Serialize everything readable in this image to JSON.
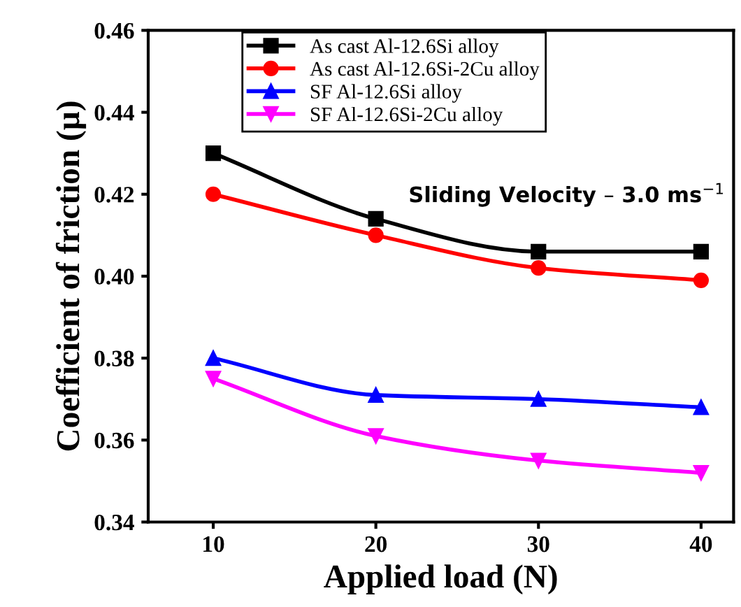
{
  "chart_data": {
    "type": "line",
    "xlabel": "Applied load (N)",
    "ylabel": "Coefficient of friction (µ)",
    "x": [
      10,
      20,
      30,
      40
    ],
    "xlim": [
      6,
      42
    ],
    "xticks": [
      10,
      20,
      30,
      40
    ],
    "ylim": [
      0.34,
      0.46
    ],
    "yticks": [
      {
        "value": 0.34,
        "label": "0.34"
      },
      {
        "value": 0.36,
        "label": "0.36"
      },
      {
        "value": 0.38,
        "label": "0.38"
      },
      {
        "value": 0.4,
        "label": "0.40"
      },
      {
        "value": 0.42,
        "label": "0.42"
      },
      {
        "value": 0.44,
        "label": "0.44"
      },
      {
        "value": 0.46,
        "label": "0.46"
      }
    ],
    "legend": "top",
    "grid": false,
    "line_style": "solid",
    "annotations": [
      "Sliding Velocity – 3.0 ms$^{−1}$"
    ],
    "series": [
      {
        "name": "As cast Al-12.6Si alloy",
        "color": "#000000",
        "marker": "square",
        "values": [
          0.43,
          0.414,
          0.406,
          0.406
        ]
      },
      {
        "name": "As cast Al-12.6Si-2Cu alloy",
        "color": "#ff0000",
        "marker": "circle",
        "values": [
          0.42,
          0.41,
          0.402,
          0.399
        ]
      },
      {
        "name": "SF Al-12.6Si alloy",
        "color": "#0000ff",
        "marker": "triangle",
        "values": [
          0.38,
          0.371,
          0.37,
          0.368
        ]
      },
      {
        "name": "SF Al-12.6Si-2Cu alloy",
        "color": "#ff00ff",
        "marker": "triangle_down",
        "values": [
          0.375,
          0.361,
          0.355,
          0.352
        ]
      }
    ]
  }
}
